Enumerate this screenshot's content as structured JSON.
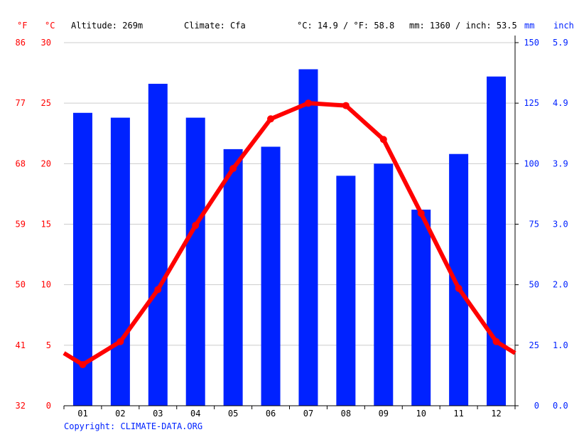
{
  "header": {
    "unit_f": "°F",
    "unit_c": "°C",
    "altitude": "Altitude: 269m",
    "climate": "Climate: Cfa",
    "avg_temp": "°C: 14.9 / °F: 58.8",
    "precip": "mm: 1360 / inch: 53.5",
    "unit_mm": "mm",
    "unit_inch": "inch"
  },
  "copyright": "Copyright: CLIMATE-DATA.ORG",
  "colors": {
    "temp": "#ff0000",
    "precip": "#0022ff",
    "grid": "#cccccc",
    "left_axis": "#ff0000",
    "right_axis": "#0022ff"
  },
  "chart_data": {
    "type": "bar+line",
    "categories": [
      "01",
      "02",
      "03",
      "04",
      "05",
      "06",
      "07",
      "08",
      "09",
      "10",
      "11",
      "12"
    ],
    "series": [
      {
        "type": "bar",
        "unit": "mm",
        "values": [
          121,
          119,
          133,
          119,
          106,
          107,
          139,
          95,
          100,
          81,
          104,
          136
        ]
      },
      {
        "type": "line",
        "unit": "°C",
        "values": [
          3.4,
          5.3,
          9.6,
          14.9,
          19.6,
          23.7,
          25.0,
          24.8,
          22.0,
          15.9,
          9.7,
          5.3
        ]
      }
    ],
    "y_left_c": {
      "range": [
        0,
        30
      ],
      "ticks": [
        "0",
        "5",
        "10",
        "15",
        "20",
        "25",
        "30"
      ]
    },
    "y_left_f": {
      "ticks": [
        "32",
        "41",
        "50",
        "59",
        "68",
        "77",
        "86"
      ]
    },
    "y_right_mm": {
      "range": [
        0,
        150
      ],
      "ticks": [
        "0",
        "25",
        "50",
        "75",
        "100",
        "125",
        "150"
      ]
    },
    "y_right_inch": {
      "ticks": [
        "0.0",
        "1.0",
        "2.0",
        "3.0",
        "3.9",
        "4.9",
        "5.9"
      ]
    },
    "grid": true
  }
}
